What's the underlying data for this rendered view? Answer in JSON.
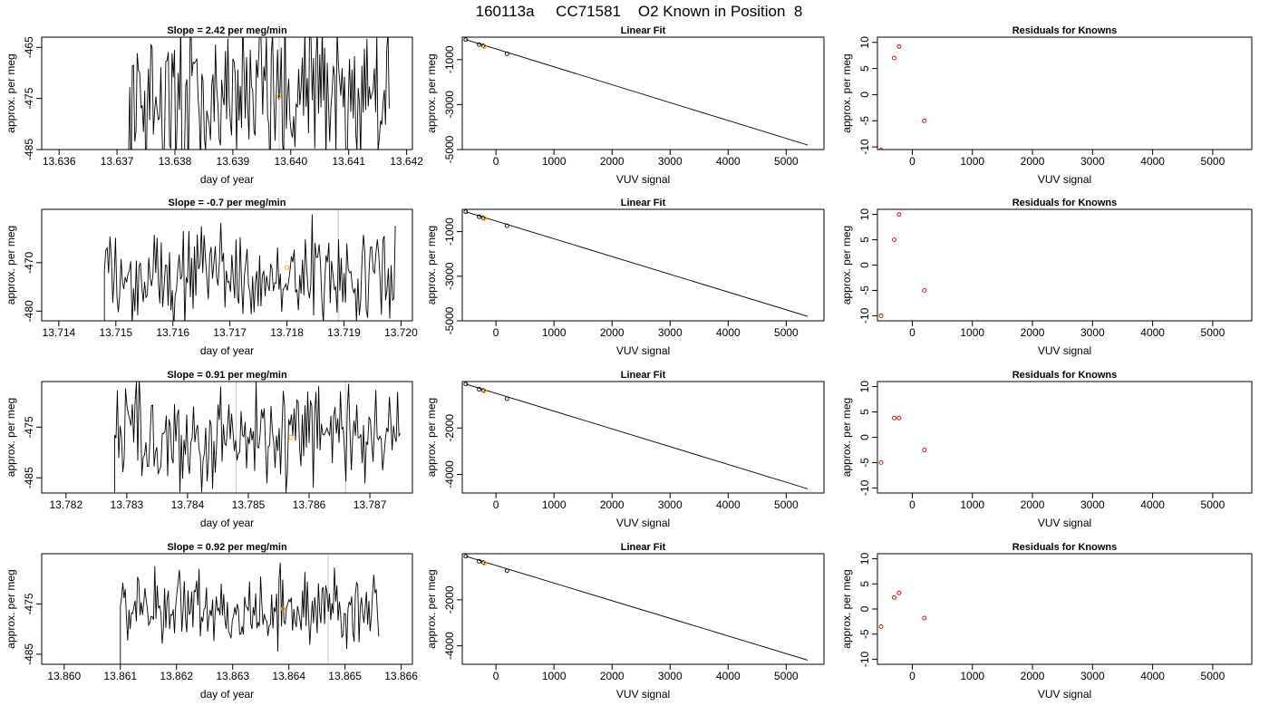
{
  "figure": {
    "title": "160113a     CC71581    O2 Known in Position  8"
  },
  "chart_data": [
    {
      "type": "line",
      "row": 1,
      "column": 1,
      "title": "Slope =  2.42  per meg/min",
      "xlabel": "day of year",
      "ylabel": "approx. per meg",
      "xlim": [
        13.6357,
        13.6421
      ],
      "ylim": [
        -485,
        -463
      ],
      "xticks": [
        13.636,
        13.637,
        13.638,
        13.639,
        13.64,
        13.641,
        13.642
      ],
      "xtick_labels": [
        "13.636",
        "13.637",
        "13.638",
        "13.639",
        "13.640",
        "13.641",
        "13.642"
      ],
      "yticks": [
        -485,
        -475,
        -465
      ],
      "ytick_labels": [
        "-485",
        "-475",
        "-465"
      ],
      "trace": {
        "x_start": 13.6372,
        "x_end": 13.6417,
        "mean": -474.5,
        "amplitude": 14
      },
      "reference_line_x": [
        13.6398
      ],
      "highlight_point": {
        "x": 13.6398,
        "y": -474.6,
        "color": "#FFA500"
      },
      "series": [
        {
          "color": "#000000"
        }
      ]
    },
    {
      "type": "scatter",
      "row": 1,
      "column": 2,
      "title": "Linear Fit",
      "xlabel": "VUV signal",
      "ylabel": "approx. per meg",
      "xlim": [
        -580,
        5650
      ],
      "ylim": [
        -5000,
        0
      ],
      "xticks": [
        0,
        1000,
        2000,
        3000,
        4000,
        5000
      ],
      "xtick_labels": [
        "0",
        "1000",
        "2000",
        "3000",
        "4000",
        "5000"
      ],
      "yticks": [
        -5000,
        -3000,
        -1000
      ],
      "ytick_labels": [
        "-5000",
        "-3000",
        "-1000"
      ],
      "points": [
        {
          "x": -520,
          "y": -110
        },
        {
          "x": -290,
          "y": -330
        },
        {
          "x": -220,
          "y": -380
        },
        {
          "x": 190,
          "y": -740
        }
      ],
      "highlight_point": {
        "x": -200,
        "y": -410,
        "color": "#FFA500"
      },
      "fit_line": [
        {
          "x": -520,
          "y": -110
        },
        {
          "x": 5370,
          "y": -4800
        }
      ]
    },
    {
      "type": "scatter",
      "row": 1,
      "column": 3,
      "title": "Residuals for Knowns",
      "xlabel": "VUV signal",
      "ylabel": "approx. per meg",
      "xlim": [
        -580,
        5650
      ],
      "ylim": [
        -10.5,
        11
      ],
      "xticks": [
        0,
        1000,
        2000,
        3000,
        4000,
        5000
      ],
      "xtick_labels": [
        "0",
        "1000",
        "2000",
        "3000",
        "4000",
        "5000"
      ],
      "yticks": [
        -10,
        -5,
        0,
        5,
        10
      ],
      "ytick_labels": [
        "-10",
        "-5",
        "0",
        "5",
        "10"
      ],
      "points": [
        {
          "x": -520,
          "y": -10.6
        },
        {
          "x": -300,
          "y": 7
        },
        {
          "x": -220,
          "y": 9.2
        },
        {
          "x": 200,
          "y": -5
        }
      ]
    },
    {
      "type": "line",
      "row": 2,
      "column": 1,
      "title": "Slope =  -0.7  per meg/min",
      "xlabel": "day of year",
      "ylabel": "approx. per meg",
      "xlim": [
        13.7137,
        13.7202
      ],
      "ylim": [
        -482,
        -459
      ],
      "xticks": [
        13.714,
        13.715,
        13.716,
        13.717,
        13.718,
        13.719,
        13.72
      ],
      "xtick_labels": [
        "13.714",
        "13.715",
        "13.716",
        "13.717",
        "13.718",
        "13.719",
        "13.720"
      ],
      "yticks": [
        -480,
        -470
      ],
      "ytick_labels": [
        "-480",
        "-470"
      ],
      "trace": {
        "x_start": 13.7148,
        "x_end": 13.7199,
        "mean": -472,
        "amplitude": 10
      },
      "reference_line_x": [
        13.7189
      ],
      "highlight_point": {
        "x": 13.718,
        "y": -471,
        "color": "#FFA500"
      },
      "series": [
        {
          "color": "#000000"
        }
      ]
    },
    {
      "type": "scatter",
      "row": 2,
      "column": 2,
      "title": "Linear Fit",
      "xlabel": "VUV signal",
      "ylabel": "approx. per meg",
      "xlim": [
        -580,
        5650
      ],
      "ylim": [
        -5000,
        0
      ],
      "xticks": [
        0,
        1000,
        2000,
        3000,
        4000,
        5000
      ],
      "xtick_labels": [
        "0",
        "1000",
        "2000",
        "3000",
        "4000",
        "5000"
      ],
      "yticks": [
        -5000,
        -3000,
        -1000
      ],
      "ytick_labels": [
        "-5000",
        "-3000",
        "-1000"
      ],
      "points": [
        {
          "x": -520,
          "y": -110
        },
        {
          "x": -290,
          "y": -330
        },
        {
          "x": -220,
          "y": -380
        },
        {
          "x": 190,
          "y": -740
        }
      ],
      "highlight_point": {
        "x": -200,
        "y": -410,
        "color": "#FFA500"
      },
      "fit_line": [
        {
          "x": -520,
          "y": -110
        },
        {
          "x": 5370,
          "y": -4800
        }
      ]
    },
    {
      "type": "scatter",
      "row": 2,
      "column": 3,
      "title": "Residuals for Knowns",
      "xlabel": "VUV signal",
      "ylabel": "approx. per meg",
      "xlim": [
        -580,
        5650
      ],
      "ylim": [
        -11,
        11
      ],
      "xticks": [
        0,
        1000,
        2000,
        3000,
        4000,
        5000
      ],
      "xtick_labels": [
        "0",
        "1000",
        "2000",
        "3000",
        "4000",
        "5000"
      ],
      "yticks": [
        -10,
        -5,
        0,
        5,
        10
      ],
      "ytick_labels": [
        "-10",
        "-5",
        "0",
        "5",
        "10"
      ],
      "points": [
        {
          "x": -520,
          "y": -10
        },
        {
          "x": -300,
          "y": 5
        },
        {
          "x": -220,
          "y": 10
        },
        {
          "x": 200,
          "y": -5
        }
      ]
    },
    {
      "type": "line",
      "row": 3,
      "column": 1,
      "title": "Slope =  0.91  per meg/min",
      "xlabel": "day of year",
      "ylabel": "approx. per meg",
      "xlim": [
        13.7816,
        13.7877
      ],
      "ylim": [
        -488,
        -466
      ],
      "xticks": [
        13.782,
        13.783,
        13.784,
        13.785,
        13.786,
        13.787
      ],
      "xtick_labels": [
        "13.782",
        "13.783",
        "13.784",
        "13.785",
        "13.786",
        "13.787"
      ],
      "yticks": [
        -485,
        -475
      ],
      "ytick_labels": [
        "-485",
        "-475"
      ],
      "trace": {
        "x_start": 13.7828,
        "x_end": 13.7875,
        "mean": -477,
        "amplitude": 9
      },
      "reference_line_x": [
        13.7848,
        13.7866
      ],
      "highlight_point": {
        "x": 13.7857,
        "y": -477,
        "color": "#FFA500"
      },
      "series": [
        {
          "color": "#000000"
        }
      ]
    },
    {
      "type": "scatter",
      "row": 3,
      "column": 2,
      "title": "Linear Fit",
      "xlabel": "VUV signal",
      "ylabel": "approx. per meg",
      "xlim": [
        -580,
        5650
      ],
      "ylim": [
        -4800,
        0
      ],
      "xticks": [
        0,
        1000,
        2000,
        3000,
        4000,
        5000
      ],
      "xtick_labels": [
        "0",
        "1000",
        "2000",
        "3000",
        "4000",
        "5000"
      ],
      "yticks": [
        -4000,
        -2000
      ],
      "ytick_labels": [
        "-4000",
        "-2000"
      ],
      "points": [
        {
          "x": -520,
          "y": -110
        },
        {
          "x": -290,
          "y": -330
        },
        {
          "x": -220,
          "y": -380
        },
        {
          "x": 190,
          "y": -740
        }
      ],
      "highlight_point": {
        "x": -200,
        "y": -410,
        "color": "#FFA500"
      },
      "fit_line": [
        {
          "x": -520,
          "y": -110
        },
        {
          "x": 5370,
          "y": -4620
        }
      ]
    },
    {
      "type": "scatter",
      "row": 3,
      "column": 3,
      "title": "Residuals for Knowns",
      "xlabel": "VUV signal",
      "ylabel": "approx. per meg",
      "xlim": [
        -580,
        5650
      ],
      "ylim": [
        -11,
        11
      ],
      "xticks": [
        0,
        1000,
        2000,
        3000,
        4000,
        5000
      ],
      "xtick_labels": [
        "0",
        "1000",
        "2000",
        "3000",
        "4000",
        "5000"
      ],
      "yticks": [
        -10,
        -5,
        0,
        5,
        10
      ],
      "ytick_labels": [
        "-10",
        "-5",
        "0",
        "5",
        "10"
      ],
      "points": [
        {
          "x": -520,
          "y": -5
        },
        {
          "x": -300,
          "y": 3.8
        },
        {
          "x": -220,
          "y": 3.8
        },
        {
          "x": 200,
          "y": -2.5
        }
      ]
    },
    {
      "type": "line",
      "row": 4,
      "column": 1,
      "title": "Slope =  0.92  per meg/min",
      "xlabel": "day of year",
      "ylabel": "approx. per meg",
      "xlim": [
        13.8596,
        13.8662
      ],
      "ylim": [
        -487,
        -465
      ],
      "xticks": [
        13.86,
        13.861,
        13.862,
        13.863,
        13.864,
        13.865,
        13.866
      ],
      "xtick_labels": [
        "13.860",
        "13.861",
        "13.862",
        "13.863",
        "13.864",
        "13.865",
        "13.866"
      ],
      "yticks": [
        -485,
        -475
      ],
      "ytick_labels": [
        "-485",
        "-475"
      ],
      "trace": {
        "x_start": 13.861,
        "x_end": 13.8656,
        "mean": -476,
        "amplitude": 7
      },
      "reference_line_x": [
        13.8647
      ],
      "highlight_point": {
        "x": 13.8639,
        "y": -476,
        "color": "#FFA500"
      },
      "series": [
        {
          "color": "#000000"
        }
      ]
    },
    {
      "type": "scatter",
      "row": 4,
      "column": 2,
      "title": "Linear Fit",
      "xlabel": "VUV signal",
      "ylabel": "approx. per meg",
      "xlim": [
        -580,
        5650
      ],
      "ylim": [
        -4800,
        0
      ],
      "xticks": [
        0,
        1000,
        2000,
        3000,
        4000,
        5000
      ],
      "xtick_labels": [
        "0",
        "1000",
        "2000",
        "3000",
        "4000",
        "5000"
      ],
      "yticks": [
        -4000,
        -2000
      ],
      "ytick_labels": [
        "-4000",
        "-2000"
      ],
      "points": [
        {
          "x": -520,
          "y": -110
        },
        {
          "x": -290,
          "y": -330
        },
        {
          "x": -220,
          "y": -380
        },
        {
          "x": 190,
          "y": -740
        }
      ],
      "highlight_point": {
        "x": -200,
        "y": -410,
        "color": "#FFA500"
      },
      "fit_line": [
        {
          "x": -520,
          "y": -110
        },
        {
          "x": 5370,
          "y": -4620
        }
      ]
    },
    {
      "type": "scatter",
      "row": 4,
      "column": 3,
      "title": "Residuals for Knowns",
      "xlabel": "VUV signal",
      "ylabel": "approx. per meg",
      "xlim": [
        -580,
        5650
      ],
      "ylim": [
        -11,
        11
      ],
      "xticks": [
        0,
        1000,
        2000,
        3000,
        4000,
        5000
      ],
      "xtick_labels": [
        "0",
        "1000",
        "2000",
        "3000",
        "4000",
        "5000"
      ],
      "yticks": [
        -10,
        -5,
        0,
        5,
        10
      ],
      "ytick_labels": [
        "-10",
        "-5",
        "0",
        "5",
        "10"
      ],
      "points": [
        {
          "x": -520,
          "y": -3.5
        },
        {
          "x": -300,
          "y": 2.3
        },
        {
          "x": -220,
          "y": 3.2
        },
        {
          "x": 200,
          "y": -1.8
        }
      ]
    }
  ]
}
